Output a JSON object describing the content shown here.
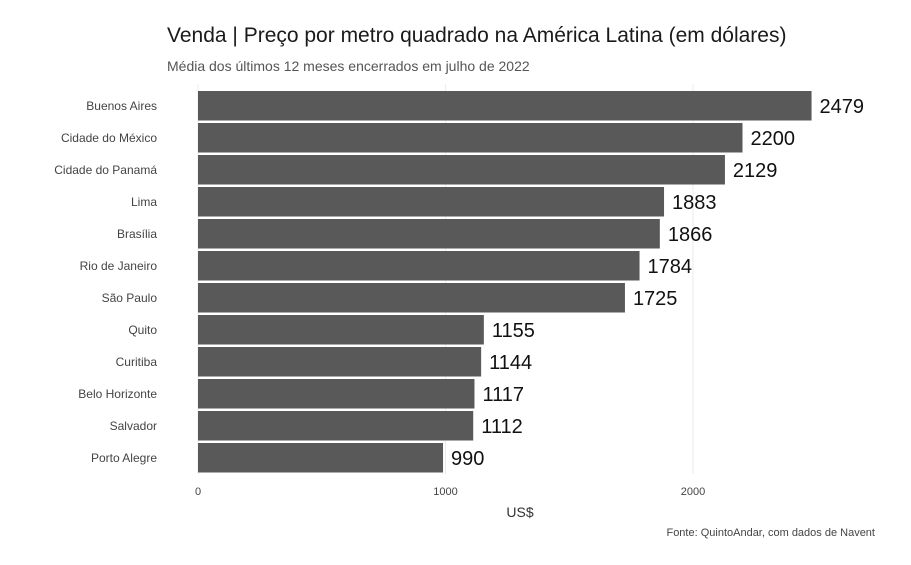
{
  "header": {
    "title": "Venda | Preço por metro quadrado na América Latina (em dólares)",
    "subtitle": "Média dos últimos 12 meses encerrados em julho de 2022",
    "caption": "Fonte: QuintoAndar, com dados de Navent"
  },
  "chart_data": {
    "type": "bar",
    "orientation": "horizontal",
    "title": "Venda | Preço por metro quadrado na América Latina (em dólares)",
    "subtitle": "Média dos últimos 12 meses encerrados em julho de 2022",
    "categories": [
      "Buenos Aires",
      "Cidade do México",
      "Cidade do Panamá",
      "Lima",
      "Brasília",
      "Rio de Janeiro",
      "São Paulo",
      "Quito",
      "Curitiba",
      "Belo Horizonte",
      "Salvador",
      "Porto Alegre"
    ],
    "values": [
      2479,
      2200,
      2129,
      1883,
      1866,
      1784,
      1725,
      1155,
      1144,
      1117,
      1112,
      990
    ],
    "xlabel": "US$",
    "ylabel": "",
    "xlim": [
      0,
      2500
    ],
    "xticks": [
      0,
      1000,
      2000
    ],
    "bar_color": "#595959",
    "grid": true
  }
}
